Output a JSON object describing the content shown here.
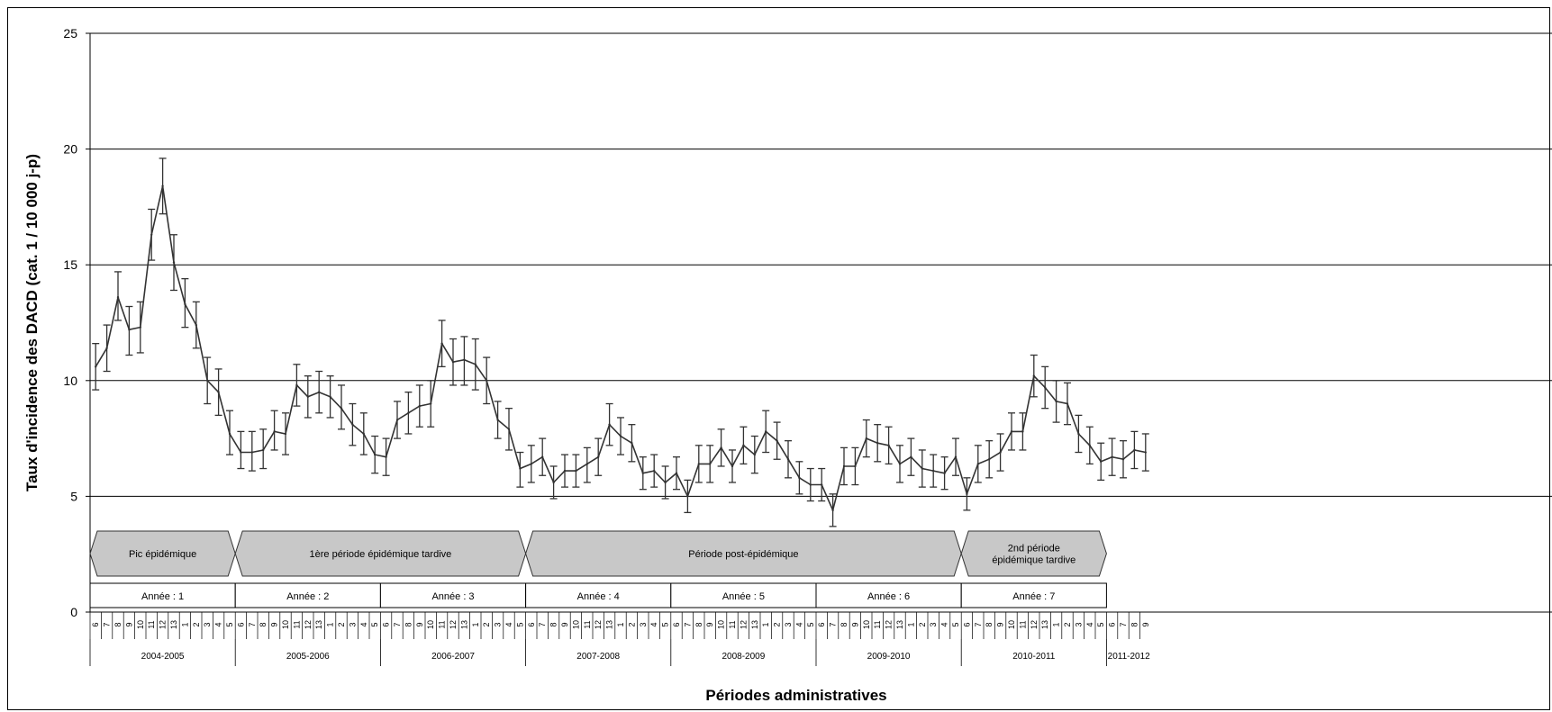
{
  "chart_data": {
    "type": "line",
    "title": "",
    "ylabel": "Taux d'incidence des DACD (cat. 1 / 10 000 j-p)",
    "xlabel": "Périodes administratives",
    "ylim": [
      0,
      25
    ],
    "yticks": [
      0,
      5,
      10,
      15,
      20,
      25
    ],
    "grid": "horizontal",
    "series": [
      {
        "values": [
          10.6,
          11.4,
          13.6,
          12.2,
          12.3,
          16.3,
          18.4,
          15.1,
          13.3,
          12.4,
          10.0,
          9.5,
          7.7,
          6.9,
          6.9,
          7.0,
          7.8,
          7.7,
          9.8,
          9.3,
          9.5,
          9.3,
          8.8,
          8.1,
          7.7,
          6.8,
          6.7,
          8.3,
          8.6,
          8.9,
          9.0,
          11.6,
          10.8,
          10.9,
          10.7,
          10.0,
          8.3,
          7.9,
          6.2,
          6.4,
          6.7,
          5.6,
          6.1,
          6.1,
          6.4,
          6.7,
          8.1,
          7.6,
          7.3,
          6.0,
          6.1,
          5.6,
          6.0,
          5.0,
          6.4,
          6.4,
          7.1,
          6.3,
          7.2,
          6.8,
          7.8,
          7.4,
          6.6,
          5.8,
          5.5,
          5.5,
          4.4,
          6.3,
          6.3,
          7.5,
          7.3,
          7.2,
          6.4,
          6.7,
          6.2,
          6.1,
          6.0,
          6.7,
          5.1,
          6.4,
          6.6,
          6.9,
          7.8,
          7.8,
          10.2,
          9.7,
          9.1,
          9.0,
          7.7,
          7.2,
          6.5,
          6.7,
          6.6,
          7.0,
          6.9
        ],
        "error_lower": [
          9.6,
          10.4,
          12.6,
          11.1,
          11.2,
          15.2,
          17.2,
          13.9,
          12.3,
          11.4,
          9.0,
          8.5,
          6.8,
          6.2,
          6.1,
          6.2,
          7.0,
          6.8,
          8.9,
          8.4,
          8.6,
          8.4,
          7.9,
          7.2,
          6.8,
          6.0,
          5.9,
          7.5,
          7.7,
          8.0,
          8.0,
          10.6,
          9.8,
          9.8,
          9.6,
          9.0,
          7.5,
          7.0,
          5.4,
          5.6,
          5.9,
          4.9,
          5.4,
          5.4,
          5.6,
          5.9,
          7.2,
          6.8,
          6.5,
          5.3,
          5.4,
          4.9,
          5.3,
          4.3,
          5.6,
          5.6,
          6.3,
          5.6,
          6.4,
          6.0,
          6.9,
          6.6,
          5.8,
          5.1,
          4.8,
          4.8,
          3.7,
          5.5,
          5.5,
          6.7,
          6.5,
          6.4,
          5.6,
          5.9,
          5.4,
          5.4,
          5.3,
          5.9,
          4.4,
          5.6,
          5.8,
          6.1,
          7.0,
          7.0,
          9.3,
          8.8,
          8.2,
          8.1,
          6.9,
          6.4,
          5.7,
          5.9,
          5.8,
          6.2,
          6.1
        ],
        "error_upper": [
          11.6,
          12.4,
          14.7,
          13.2,
          13.4,
          17.4,
          19.6,
          16.3,
          14.4,
          13.4,
          11.0,
          10.5,
          8.7,
          7.8,
          7.8,
          7.9,
          8.7,
          8.6,
          10.7,
          10.2,
          10.4,
          10.2,
          9.8,
          9.0,
          8.6,
          7.6,
          7.5,
          9.1,
          9.5,
          9.8,
          10.0,
          12.6,
          11.8,
          11.9,
          11.8,
          11.0,
          9.1,
          8.8,
          6.9,
          7.2,
          7.5,
          6.3,
          6.8,
          6.8,
          7.1,
          7.5,
          9.0,
          8.4,
          8.1,
          6.7,
          6.8,
          6.3,
          6.7,
          5.7,
          7.2,
          7.2,
          7.9,
          7.0,
          8.0,
          7.6,
          8.7,
          8.2,
          7.4,
          6.5,
          6.2,
          6.2,
          5.1,
          7.1,
          7.1,
          8.3,
          8.1,
          8.0,
          7.2,
          7.5,
          7.0,
          6.8,
          6.7,
          7.5,
          5.8,
          7.2,
          7.4,
          7.7,
          8.6,
          8.6,
          11.1,
          10.6,
          10.0,
          9.9,
          8.5,
          8.0,
          7.3,
          7.5,
          7.4,
          7.8,
          7.7
        ]
      }
    ],
    "periods": [
      "6",
      "7",
      "8",
      "9",
      "10",
      "11",
      "12",
      "13",
      "1",
      "2",
      "3",
      "4",
      "5",
      "6",
      "7",
      "8",
      "9",
      "10",
      "11",
      "12",
      "13",
      "1",
      "2",
      "3",
      "4",
      "5",
      "6",
      "7",
      "8",
      "9",
      "10",
      "11",
      "12",
      "13",
      "1",
      "2",
      "3",
      "4",
      "5",
      "6",
      "7",
      "8",
      "9",
      "10",
      "11",
      "12",
      "13",
      "1",
      "2",
      "3",
      "4",
      "5",
      "6",
      "7",
      "8",
      "9",
      "10",
      "11",
      "12",
      "13",
      "1",
      "2",
      "3",
      "4",
      "5",
      "6",
      "7",
      "8",
      "9",
      "10",
      "11",
      "12",
      "13",
      "1",
      "2",
      "3",
      "4",
      "5",
      "6",
      "7",
      "8",
      "9",
      "10",
      "11",
      "12",
      "13",
      "1",
      "2",
      "3",
      "4",
      "5",
      "6",
      "7",
      "8",
      "9"
    ],
    "fiscal_years": [
      "2004-2005",
      "2005-2006",
      "2006-2007",
      "2007-2008",
      "2008-2009",
      "2009-2010",
      "2010-2011",
      "2011-2012"
    ],
    "phases": [
      "Pic épidémique",
      "1ère période épidémique tardive",
      "Période post-épidémique",
      "2nd période\népidémique tardive"
    ],
    "study_years": [
      "Année : 1",
      "Année : 2",
      "Année : 3",
      "Année : 4",
      "Année : 5",
      "Année : 6",
      "Année : 7"
    ],
    "colors": {
      "line": "#333333",
      "phase_fill": "#c8c8c8",
      "grid": "#000000"
    }
  }
}
